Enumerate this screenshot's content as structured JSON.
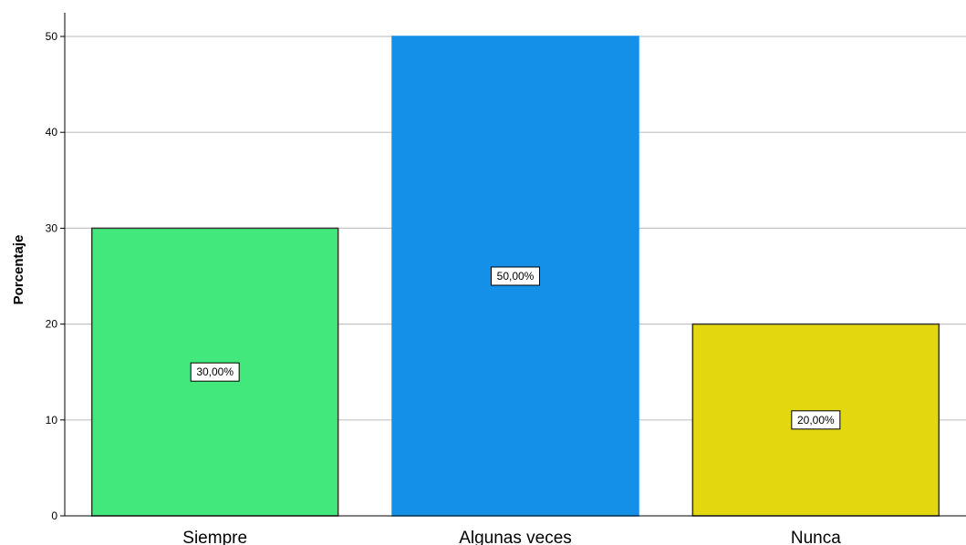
{
  "chart_data": {
    "type": "bar",
    "categories": [
      "Siempre",
      "Algunas veces",
      "Nunca"
    ],
    "values": [
      30,
      50,
      20
    ],
    "data_labels": [
      "30,00%",
      "50,00%",
      "20,00%"
    ],
    "colors": [
      "#43e87c",
      "#1490e8",
      "#e3d70f"
    ],
    "bar_outline": [
      "#333333",
      "#1490e8",
      "#333333"
    ],
    "title": "",
    "xlabel": "",
    "ylabel": "Porcentaje",
    "ylim": [
      0,
      50
    ],
    "yticks": [
      0,
      10,
      20,
      30,
      40,
      50
    ],
    "grid": true,
    "legend": "none"
  }
}
